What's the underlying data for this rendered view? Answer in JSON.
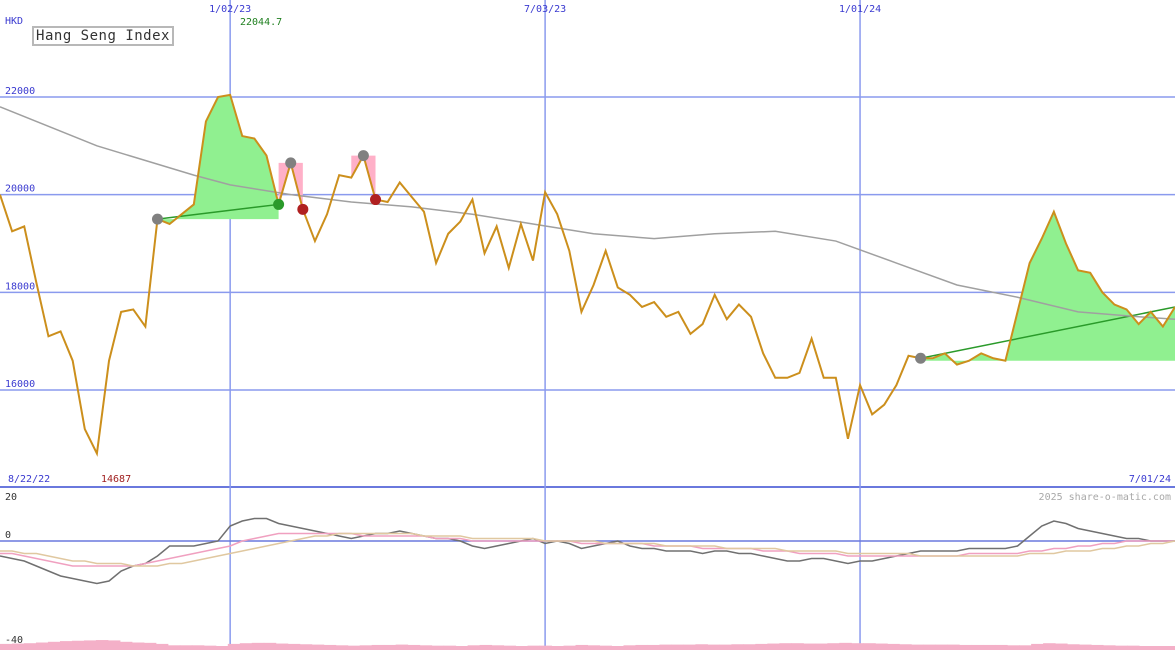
{
  "chart_data": [
    {
      "type": "line",
      "title": "Hang Seng Index",
      "ylabel": "HKD",
      "ylim": [
        14000,
        23000
      ],
      "yticks": [
        16000,
        18000,
        20000,
        22000
      ],
      "x_range": [
        "8/22/22",
        "7/01/24"
      ],
      "x_date_labels": [
        "1/02/23",
        "7/03/23",
        "1/01/24"
      ],
      "high_label": "22044.7",
      "low_label": "14687",
      "grid": true,
      "series": [
        {
          "color": "#cc8f1c",
          "x": [
            "2022-08-22",
            "2022-08-29",
            "2022-09-05",
            "2022-09-12",
            "2022-09-19",
            "2022-09-26",
            "2022-10-03",
            "2022-10-10",
            "2022-10-17",
            "2022-10-24",
            "2022-10-31",
            "2022-11-07",
            "2022-11-14",
            "2022-11-21",
            "2022-11-28",
            "2022-12-05",
            "2022-12-12",
            "2022-12-19",
            "2022-12-26",
            "2023-01-02",
            "2023-01-09",
            "2023-01-16",
            "2023-01-23",
            "2023-01-30",
            "2023-02-06",
            "2023-02-13",
            "2023-02-20",
            "2023-02-27",
            "2023-03-06",
            "2023-03-13",
            "2023-03-20",
            "2023-03-27",
            "2023-04-03",
            "2023-04-10",
            "2023-04-17",
            "2023-04-24",
            "2023-05-01",
            "2023-05-08",
            "2023-05-15",
            "2023-05-22",
            "2023-05-29",
            "2023-06-05",
            "2023-06-12",
            "2023-06-19",
            "2023-06-26",
            "2023-07-03",
            "2023-07-10",
            "2023-07-17",
            "2023-07-24",
            "2023-07-31",
            "2023-08-07",
            "2023-08-14",
            "2023-08-21",
            "2023-08-28",
            "2023-09-04",
            "2023-09-11",
            "2023-09-18",
            "2023-09-25",
            "2023-10-02",
            "2023-10-09",
            "2023-10-16",
            "2023-10-23",
            "2023-10-30",
            "2023-11-06",
            "2023-11-13",
            "2023-11-20",
            "2023-11-27",
            "2023-12-04",
            "2023-12-11",
            "2023-12-18",
            "2023-12-25",
            "2024-01-01",
            "2024-01-08",
            "2024-01-15",
            "2024-01-22",
            "2024-01-29",
            "2024-02-05",
            "2024-02-12",
            "2024-02-19",
            "2024-02-26",
            "2024-03-04",
            "2024-03-11",
            "2024-03-18",
            "2024-03-25",
            "2024-04-01",
            "2024-04-08",
            "2024-04-15",
            "2024-04-22",
            "2024-04-29",
            "2024-05-06",
            "2024-05-13",
            "2024-05-20",
            "2024-05-27",
            "2024-06-03",
            "2024-06-10",
            "2024-06-17",
            "2024-06-24",
            "2024-07-01"
          ],
          "values": [
            20000,
            19250,
            19350,
            18200,
            17100,
            17200,
            16600,
            15200,
            14700,
            16600,
            17600,
            17650,
            17300,
            19500,
            19400,
            19600,
            19800,
            21500,
            22000,
            22044,
            21200,
            21150,
            20800,
            19800,
            20650,
            19700,
            19050,
            19600,
            20400,
            20350,
            20800,
            19900,
            19850,
            20250,
            19950,
            19650,
            18600,
            19200,
            19450,
            19900,
            18800,
            19350,
            18500,
            19400,
            18650,
            20050,
            19600,
            18850,
            17600,
            18150,
            18850,
            18100,
            17950,
            17700,
            17800,
            17500,
            17600,
            17150,
            17350,
            17950,
            17450,
            17750,
            17500,
            16750,
            16250,
            16250,
            16350,
            17050,
            16250,
            16250,
            15000,
            16100,
            15500,
            15700,
            16100,
            16700,
            16650,
            16650,
            16750,
            16520,
            16600,
            16750,
            16650,
            16600,
            17600,
            18600,
            19100,
            19650,
            19000,
            18450,
            18400,
            18000,
            17750,
            17650,
            17350,
            17600,
            17300,
            17700
          ]
        },
        {
          "color": "#a0a0a0",
          "x": [
            "2022-08-22",
            "2022-10-17",
            "2022-12-12",
            "2023-01-02",
            "2023-02-06",
            "2023-03-13",
            "2023-04-17",
            "2023-05-22",
            "2023-06-26",
            "2023-07-31",
            "2023-09-04",
            "2023-10-09",
            "2023-11-13",
            "2023-12-18",
            "2024-01-22",
            "2024-02-26",
            "2024-04-01",
            "2024-05-06",
            "2024-06-10",
            "2024-07-01"
          ],
          "values": [
            21800,
            21000,
            20400,
            20200,
            20000,
            19850,
            19750,
            19600,
            19400,
            19200,
            19100,
            19200,
            19250,
            19050,
            18600,
            18150,
            17900,
            17600,
            17500,
            17450
          ]
        }
      ]
    },
    {
      "type": "line",
      "ylim": [
        -40,
        20
      ],
      "yticks": [
        20,
        0,
        -40
      ],
      "watermark": "2025 share-o-matic.com",
      "series": [
        {
          "color": "#707070",
          "values": [
            -6,
            -7,
            -8,
            -10,
            -12,
            -14,
            -15,
            -16,
            -17,
            -16,
            -12,
            -10,
            -9,
            -6,
            -2,
            -2,
            -2,
            -1,
            0,
            6,
            8,
            9,
            9,
            7,
            6,
            5,
            4,
            3,
            2,
            1,
            2,
            3,
            3,
            4,
            3,
            2,
            1,
            1,
            0,
            -2,
            -3,
            -2,
            -1,
            0,
            1,
            -1,
            0,
            -1,
            -3,
            -2,
            -1,
            0,
            -2,
            -3,
            -3,
            -4,
            -4,
            -4,
            -5,
            -4,
            -4,
            -5,
            -5,
            -6,
            -7,
            -8,
            -8,
            -7,
            -7,
            -8,
            -9,
            -8,
            -8,
            -7,
            -6,
            -5,
            -4,
            -4,
            -4,
            -4,
            -3,
            -3,
            -3,
            -3,
            -2,
            2,
            6,
            8,
            7,
            5,
            4,
            3,
            2,
            1,
            1,
            0,
            0,
            0
          ]
        },
        {
          "color": "#f0a0c0",
          "values": [
            -5,
            -5,
            -6,
            -7,
            -8,
            -9,
            -10,
            -10,
            -10,
            -10,
            -10,
            -10,
            -9,
            -8,
            -7,
            -6,
            -5,
            -4,
            -3,
            -2,
            0,
            1,
            2,
            3,
            3,
            3,
            3,
            3,
            3,
            3,
            2,
            2,
            2,
            2,
            2,
            2,
            1,
            1,
            1,
            0,
            0,
            0,
            0,
            0,
            0,
            0,
            0,
            0,
            -1,
            -1,
            -1,
            -1,
            -1,
            -1,
            -2,
            -2,
            -2,
            -2,
            -3,
            -3,
            -3,
            -3,
            -3,
            -4,
            -4,
            -4,
            -5,
            -5,
            -5,
            -5,
            -6,
            -6,
            -6,
            -6,
            -6,
            -6,
            -6,
            -6,
            -6,
            -6,
            -5,
            -5,
            -5,
            -5,
            -5,
            -4,
            -4,
            -3,
            -3,
            -2,
            -2,
            -1,
            -1,
            0,
            0,
            0,
            0,
            0
          ]
        },
        {
          "color": "#e0c8a0",
          "values": [
            -4,
            -4,
            -5,
            -5,
            -6,
            -7,
            -8,
            -8,
            -9,
            -9,
            -9,
            -10,
            -10,
            -10,
            -9,
            -9,
            -8,
            -7,
            -6,
            -5,
            -4,
            -3,
            -2,
            -1,
            0,
            1,
            2,
            2,
            3,
            3,
            3,
            3,
            3,
            3,
            3,
            2,
            2,
            2,
            2,
            1,
            1,
            1,
            1,
            1,
            1,
            0,
            0,
            0,
            0,
            0,
            -1,
            -1,
            -1,
            -1,
            -1,
            -2,
            -2,
            -2,
            -2,
            -2,
            -3,
            -3,
            -3,
            -3,
            -3,
            -4,
            -4,
            -4,
            -4,
            -4,
            -5,
            -5,
            -5,
            -5,
            -5,
            -5,
            -6,
            -6,
            -6,
            -6,
            -6,
            -6,
            -6,
            -6,
            -6,
            -5,
            -5,
            -5,
            -4,
            -4,
            -4,
            -3,
            -3,
            -2,
            -2,
            -1,
            -1,
            0
          ]
        }
      ]
    }
  ]
}
